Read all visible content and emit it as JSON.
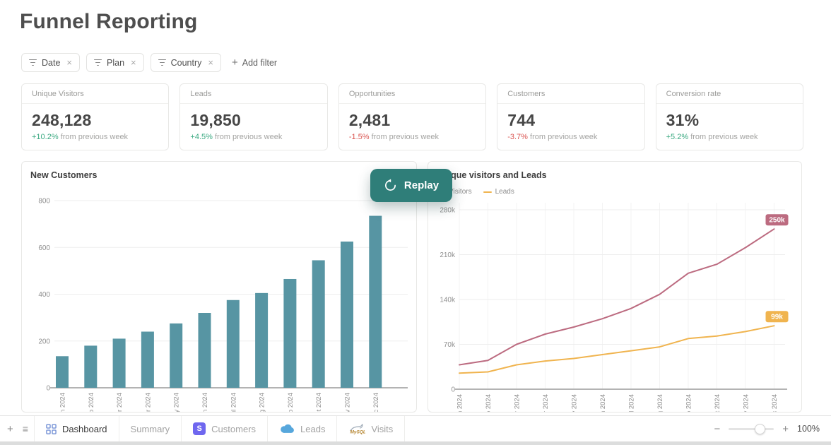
{
  "page": {
    "title": "Funnel Reporting"
  },
  "filters": {
    "chips": [
      {
        "label": "Date"
      },
      {
        "label": "Plan"
      },
      {
        "label": "Country"
      }
    ],
    "add_label": "Add filter"
  },
  "icons": {
    "close": "×",
    "plus": "+",
    "minus": "−",
    "hamburger": "≡",
    "stripe_letter": "S",
    "mysql_text": "MySQL"
  },
  "kpis": {
    "suffix": "from previous week",
    "colors": {
      "up": "#3aa981",
      "down": "#da5450"
    },
    "cards": [
      {
        "label": "Unique Visitors",
        "value": "248,128",
        "delta": "+10.2%",
        "trend": "up"
      },
      {
        "label": "Leads",
        "value": "19,850",
        "delta": "+4.5%",
        "trend": "up"
      },
      {
        "label": "Opportunities",
        "value": "2,481",
        "delta": "-1.5%",
        "trend": "down"
      },
      {
        "label": "Customers",
        "value": "744",
        "delta": "-3.7%",
        "trend": "down"
      },
      {
        "label": "Conversion rate",
        "value": "31%",
        "delta": "+5.2%",
        "trend": "up"
      }
    ]
  },
  "replay": {
    "label": "Replay"
  },
  "chart_data": [
    {
      "type": "bar",
      "title": "New Customers",
      "categories": [
        "Jan 2024",
        "Feb 2024",
        "Mar 2024",
        "Apr 2024",
        "May 2024",
        "Jun 2024",
        "Jul 2024",
        "Aug 2024",
        "Sep 2024",
        "Oct 2024",
        "Nov 2024",
        "Dec 2024"
      ],
      "values": [
        135,
        180,
        210,
        240,
        275,
        320,
        375,
        405,
        465,
        545,
        625,
        735
      ],
      "xlabel": "",
      "ylabel": "",
      "ylim": [
        0,
        800
      ],
      "yticks": [
        {
          "value": 0,
          "label": "0"
        },
        {
          "value": 200,
          "label": "200"
        },
        {
          "value": 400,
          "label": "400"
        },
        {
          "value": 600,
          "label": "600"
        },
        {
          "value": 800,
          "label": "800"
        }
      ],
      "bar_color": "#5795a3",
      "grid": "horizontal",
      "legend_position": "none"
    },
    {
      "type": "line",
      "title": "Unique visitors and Leads",
      "categories": [
        "Jan 2024",
        "Feb 2024",
        "Mar 2024",
        "Apr 2024",
        "May 2024",
        "Jun 2024",
        "Jul 2024",
        "Aug 2024",
        "Sep 2024",
        "Oct 2024",
        "Nov 2024",
        "Dec 2024"
      ],
      "series": [
        {
          "name": "Visitors",
          "color": "#bc6b80",
          "values": [
            38000,
            45000,
            70000,
            86000,
            97000,
            110000,
            126000,
            148000,
            181000,
            195000,
            221000,
            250000
          ],
          "end_label": "250k"
        },
        {
          "name": "Leads",
          "color": "#f0b44f",
          "values": [
            25000,
            27000,
            38000,
            44000,
            48000,
            54000,
            60000,
            66000,
            79000,
            83000,
            90000,
            99000
          ],
          "end_label": "99k"
        }
      ],
      "xlabel": "",
      "ylabel": "",
      "ylim": [
        0,
        280000
      ],
      "yticks": [
        {
          "value": 0,
          "label": "0"
        },
        {
          "value": 70000,
          "label": "70k"
        },
        {
          "value": 140000,
          "label": "140k"
        },
        {
          "value": 210000,
          "label": "210k"
        },
        {
          "value": 280000,
          "label": "280k"
        }
      ],
      "grid": "both",
      "legend_position": "top-left"
    }
  ],
  "bottom_bar": {
    "tabs": [
      {
        "label": "Dashboard",
        "icon": "grid",
        "active": true
      },
      {
        "label": "Summary",
        "icon": "",
        "active": false
      },
      {
        "label": "Customers",
        "icon": "stripe",
        "active": false
      },
      {
        "label": "Leads",
        "icon": "salesforce",
        "active": false
      },
      {
        "label": "Visits",
        "icon": "mysql",
        "active": false
      }
    ],
    "zoom_value": "100%"
  }
}
